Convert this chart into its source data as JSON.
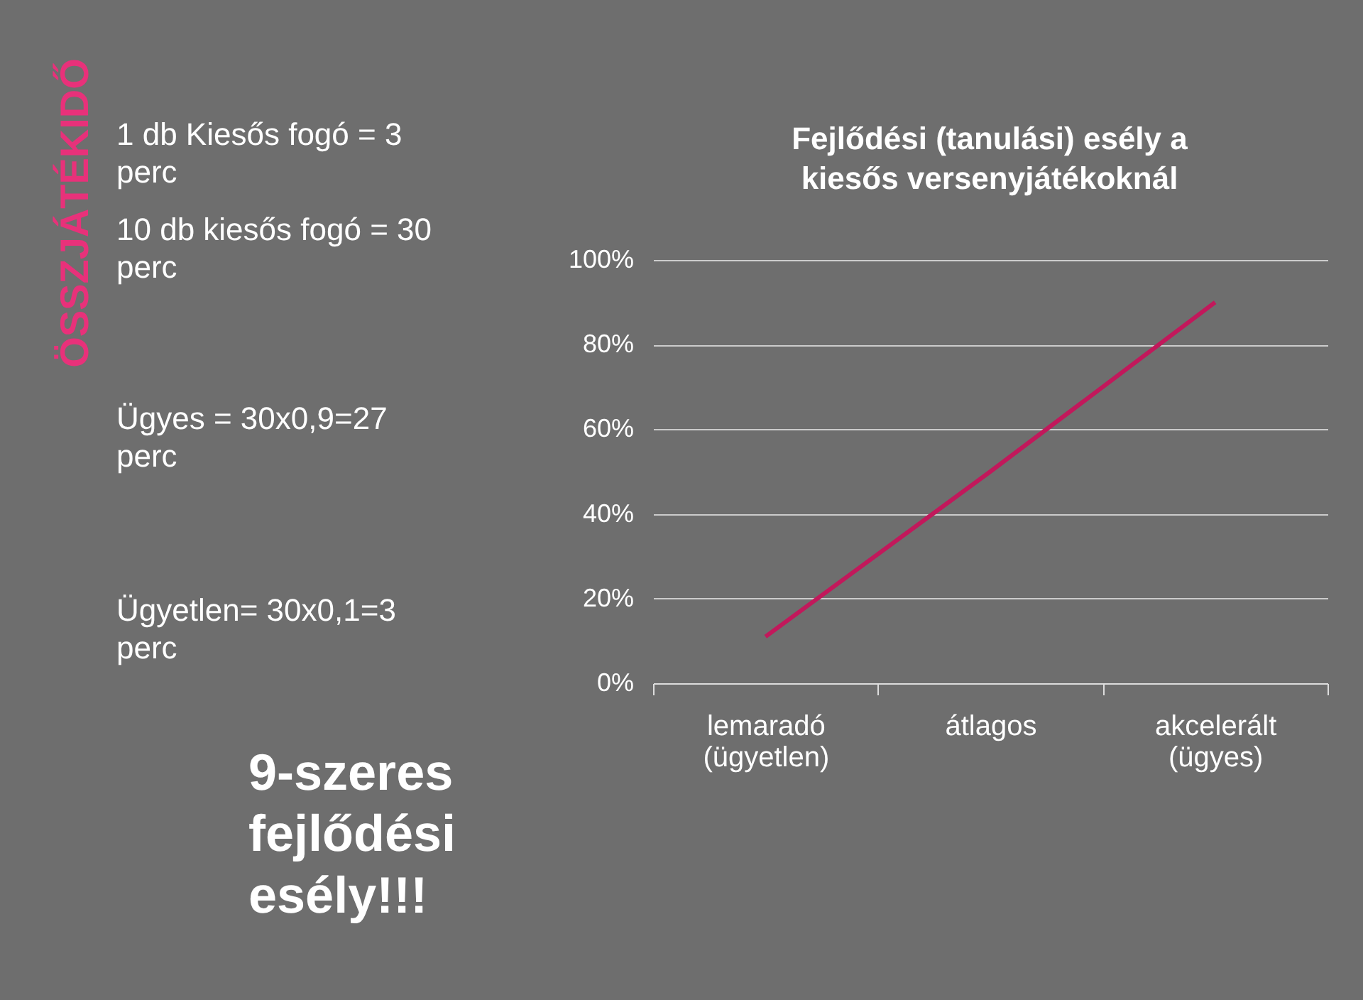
{
  "chart_data": {
    "type": "line",
    "title": "Fejlődési (tanulási) esély a kiesős versenyjátékoknál",
    "categories": [
      "lemaradó (ügyetlen)",
      "átlagos",
      "akcelerált (ügyes)"
    ],
    "series": [
      {
        "color": "#c2185b",
        "values": [
          11,
          50,
          90
        ]
      }
    ],
    "ylim": [
      0,
      100
    ],
    "yticks": [
      {
        "value": 0,
        "label": "0%"
      },
      {
        "value": 20,
        "label": "20%"
      },
      {
        "value": 40,
        "label": "40%"
      },
      {
        "value": 60,
        "label": "60%"
      },
      {
        "value": 80,
        "label": "80%"
      },
      {
        "value": 100,
        "label": "100%"
      }
    ],
    "grid": "y",
    "legend": false,
    "marker": "none",
    "line_style": "solid",
    "annotations": [
      "ÖSSZJÁTÉKIDŐ",
      "1 db Kiesős fogó = 3 perc",
      "10  db kiesős fogó = 30 perc",
      "Ügyes = 30x0,9=27 perc",
      "Ügyetlen= 30x0,1=3 perc",
      "9-szeres fejlődési esély!!!"
    ]
  }
}
